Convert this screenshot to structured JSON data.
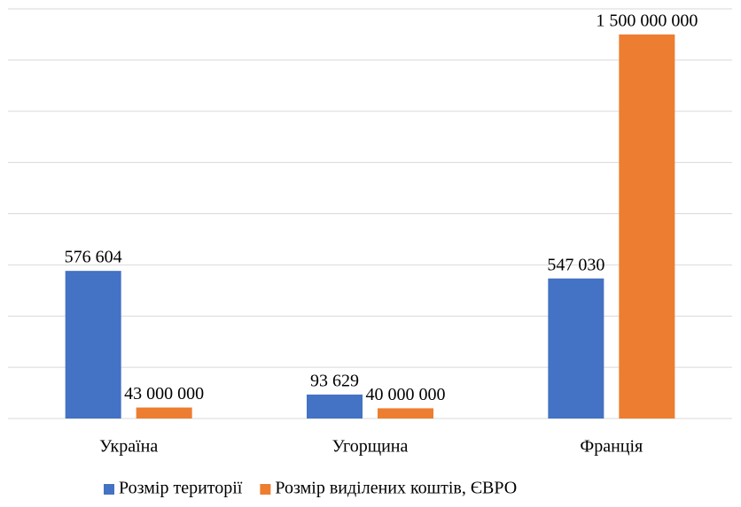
{
  "chart_data": {
    "type": "bar",
    "categories": [
      "Україна",
      "Угорщина",
      "Франція"
    ],
    "series": [
      {
        "name": "Розмір території",
        "color": "#4472c4",
        "values": [
          576604,
          93629,
          547030
        ],
        "value_labels": [
          "576 604",
          "93 629",
          "547 030"
        ]
      },
      {
        "name": "Розмір виділених коштів, ЄВРО",
        "color": "#ed7d31",
        "axis": "y2",
        "values": [
          43000000,
          40000000,
          1500000000
        ],
        "value_labels": [
          "43 000 000",
          "40 000 000",
          "1 500 000 000"
        ]
      }
    ],
    "ylim": [
      0,
      1600000
    ],
    "yticks": [
      0,
      200000,
      400000,
      600000,
      800000,
      1000000,
      1200000,
      1400000,
      1600000
    ],
    "y2lim": [
      0,
      1600000000
    ],
    "grid": true,
    "legend": "bottom"
  }
}
